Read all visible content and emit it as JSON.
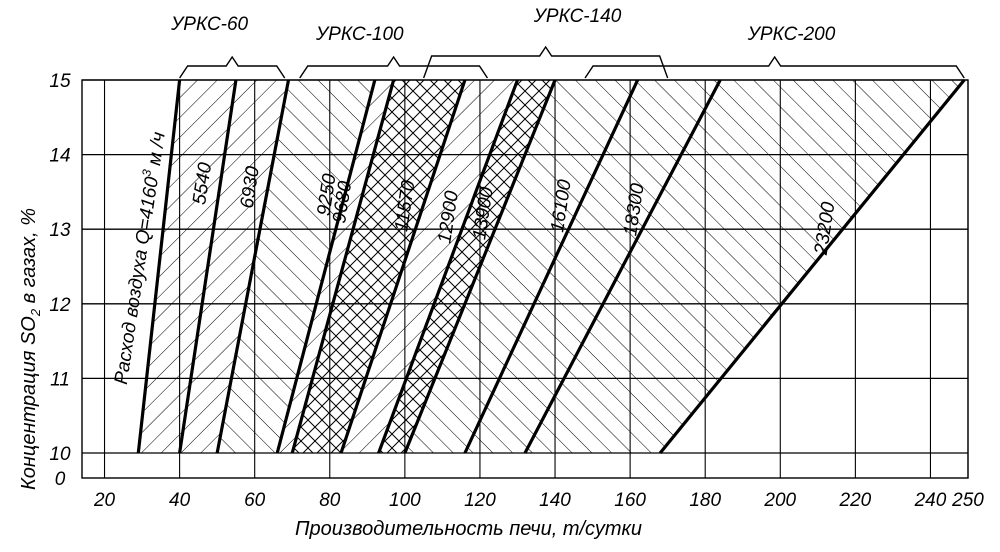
{
  "chart_data": {
    "type": "line",
    "xlabel": "Производительность печи, т/сутки",
    "ylabel_parts": {
      "pre": "Концентрация SO",
      "sub": "2",
      "post": " в газах, %"
    },
    "x_ticks": [
      "20",
      "40",
      "60",
      "80",
      "100",
      "120",
      "140",
      "160",
      "180",
      "200",
      "220",
      "240",
      "250"
    ],
    "y_ticks": [
      "0",
      "10",
      "11",
      "12",
      "13",
      "14",
      "15"
    ],
    "groups": [
      {
        "label": "УРКС-60",
        "x_range": [
          40,
          68
        ]
      },
      {
        "label": "УРКС-100",
        "x_range": [
          72,
          122
        ]
      },
      {
        "label": "УРКС-140",
        "x_range": [
          105,
          170
        ]
      },
      {
        "label": "УРКС-200",
        "x_range": [
          148,
          249
        ]
      }
    ],
    "line_caption": {
      "pre": "Расход воздуха Q=4160",
      "sup": "3",
      "post": " м /ч"
    },
    "series": [
      {
        "name": "4160",
        "x_at_10": 29,
        "x_at_15": 40
      },
      {
        "name": "5540",
        "x_at_10": 40,
        "x_at_15": 55
      },
      {
        "name": "6930",
        "x_at_10": 50,
        "x_at_15": 69
      },
      {
        "name": "9250",
        "x_at_10": 66,
        "x_at_15": 92
      },
      {
        "name": "9680",
        "x_at_10": 70,
        "x_at_15": 97
      },
      {
        "name": "11570",
        "x_at_10": 83,
        "x_at_15": 116
      },
      {
        "name": "12900",
        "x_at_10": 93,
        "x_at_15": 130
      },
      {
        "name": "13900",
        "x_at_10": 100,
        "x_at_15": 140
      },
      {
        "name": "16100",
        "x_at_10": 116,
        "x_at_15": 162
      },
      {
        "name": "18300",
        "x_at_10": 132,
        "x_at_15": 184
      },
      {
        "name": "23200",
        "x_at_10": 168,
        "x_at_15": 249
      }
    ]
  }
}
